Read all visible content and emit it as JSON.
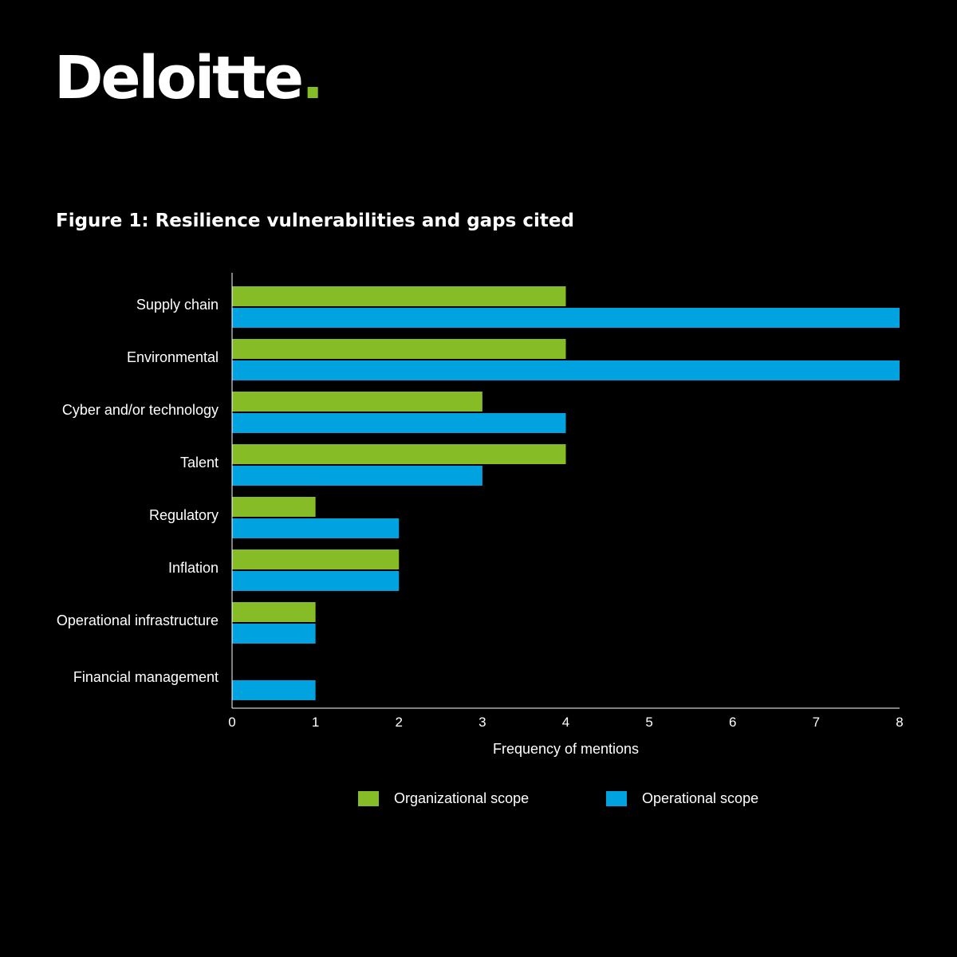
{
  "brand": {
    "name": "Deloitte",
    "dot": ".",
    "accent": "#86bc25"
  },
  "chart_data": {
    "type": "bar",
    "orientation": "horizontal",
    "title": "Figure 1: Resilience vulnerabilities and gaps cited",
    "xlabel": "Frequency of mentions",
    "ylabel": "",
    "xlim": [
      0,
      8
    ],
    "xticks": [
      0,
      1,
      2,
      3,
      4,
      5,
      6,
      7,
      8
    ],
    "grid": false,
    "legend_position": "bottom-center",
    "categories": [
      "Supply chain",
      "Environmental",
      "Cyber and/or technology",
      "Talent",
      "Regulatory",
      "Inflation",
      "Operational infrastructure",
      "Financial management"
    ],
    "series": [
      {
        "name": "Organizational scope",
        "color": "#86bc25",
        "values": [
          4,
          4,
          3,
          4,
          1,
          2,
          1,
          0
        ]
      },
      {
        "name": "Operational scope",
        "color": "#00a3e0",
        "values": [
          8,
          8,
          4,
          3,
          2,
          2,
          1,
          1
        ]
      }
    ]
  }
}
